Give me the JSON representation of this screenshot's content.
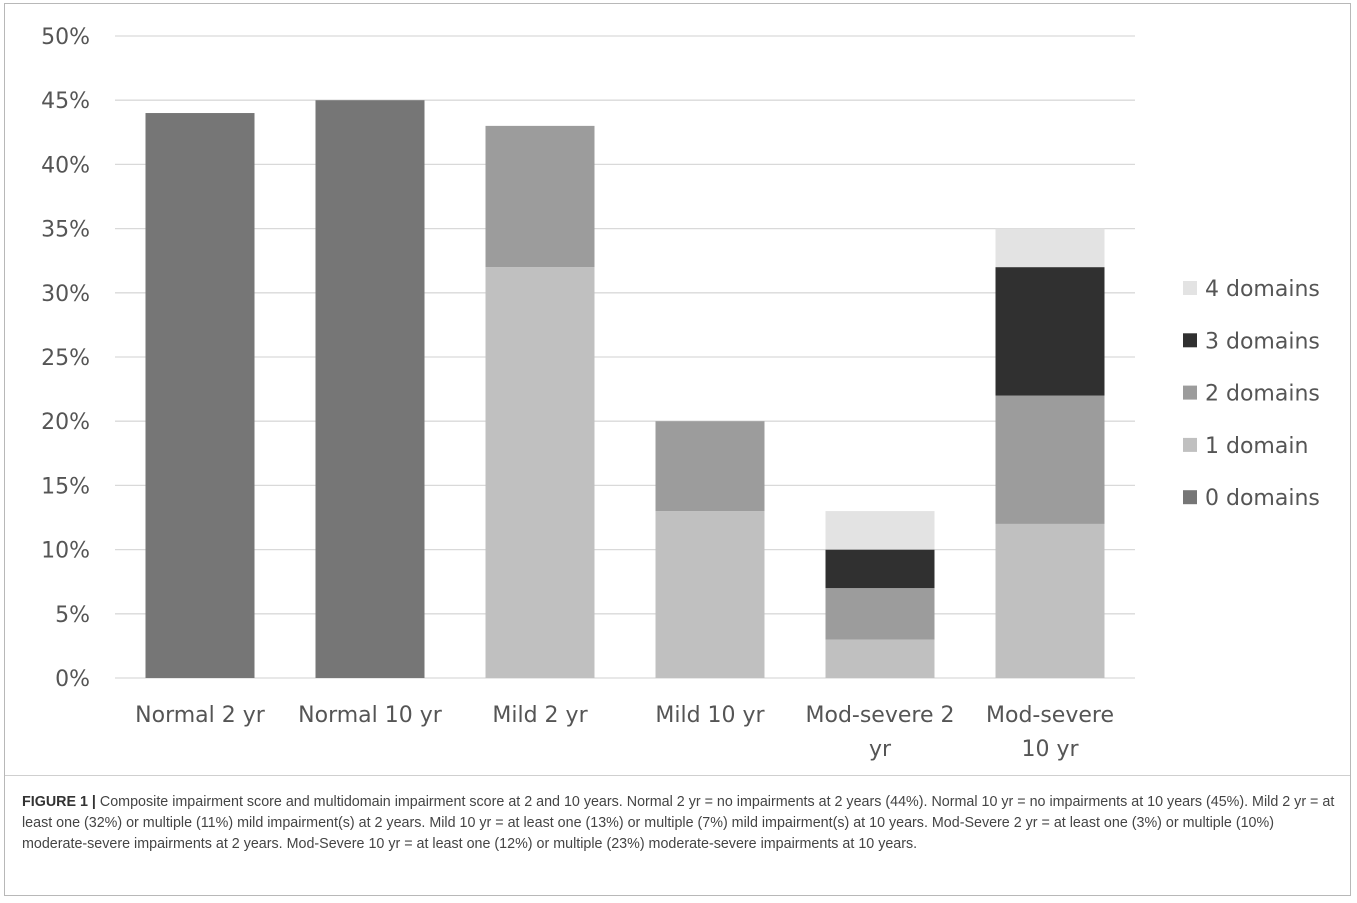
{
  "chart_data": {
    "type": "bar",
    "stacked": true,
    "categories": [
      [
        "Normal 2 yr"
      ],
      [
        "Normal 10 yr"
      ],
      [
        "Mild 2 yr"
      ],
      [
        "Mild 10 yr"
      ],
      [
        "Mod-severe 2",
        "yr"
      ],
      [
        "Mod-severe",
        "10 yr"
      ]
    ],
    "series": [
      {
        "name": "0 domains",
        "color": "#767676",
        "values": [
          44,
          45,
          0,
          0,
          0,
          0
        ]
      },
      {
        "name": "1 domain",
        "color": "#c0c0c0",
        "values": [
          0,
          0,
          32,
          13,
          3,
          12
        ]
      },
      {
        "name": "2 domains",
        "color": "#9c9c9c",
        "values": [
          0,
          0,
          11,
          7,
          4,
          10
        ]
      },
      {
        "name": "3 domains",
        "color": "#303030",
        "values": [
          0,
          0,
          0,
          0,
          3,
          10
        ]
      },
      {
        "name": "4 domains",
        "color": "#e3e3e3",
        "values": [
          0,
          0,
          0,
          0,
          3,
          3
        ]
      }
    ],
    "legend_order": [
      "4 domains",
      "3 domains",
      "2 domains",
      "1 domain",
      "0 domains"
    ],
    "ylim": [
      0,
      50
    ],
    "yticks": [
      "0%",
      "5%",
      "10%",
      "15%",
      "20%",
      "25%",
      "30%",
      "35%",
      "40%",
      "45%",
      "50%"
    ],
    "grid": true,
    "legend_position": "right",
    "gridline_color": "#d9d9d9"
  },
  "caption": {
    "label": "FIGURE 1 |",
    "text": "Composite impairment score and multidomain impairment score at 2 and 10 years. Normal 2 yr = no impairments at 2 years (44%). Normal 10 yr = no impairments at 10 years (45%). Mild 2 yr = at least one (32%) or multiple (11%) mild impairment(s) at 2 years. Mild 10 yr = at least one (13%) or multiple (7%) mild impairment(s) at 10 years. Mod-Severe 2 yr = at least one (3%) or multiple (10%) moderate-severe impairments at 2 years. Mod-Severe 10 yr = at least one (12%) or multiple (23%) moderate-severe impairments at 10 years."
  }
}
